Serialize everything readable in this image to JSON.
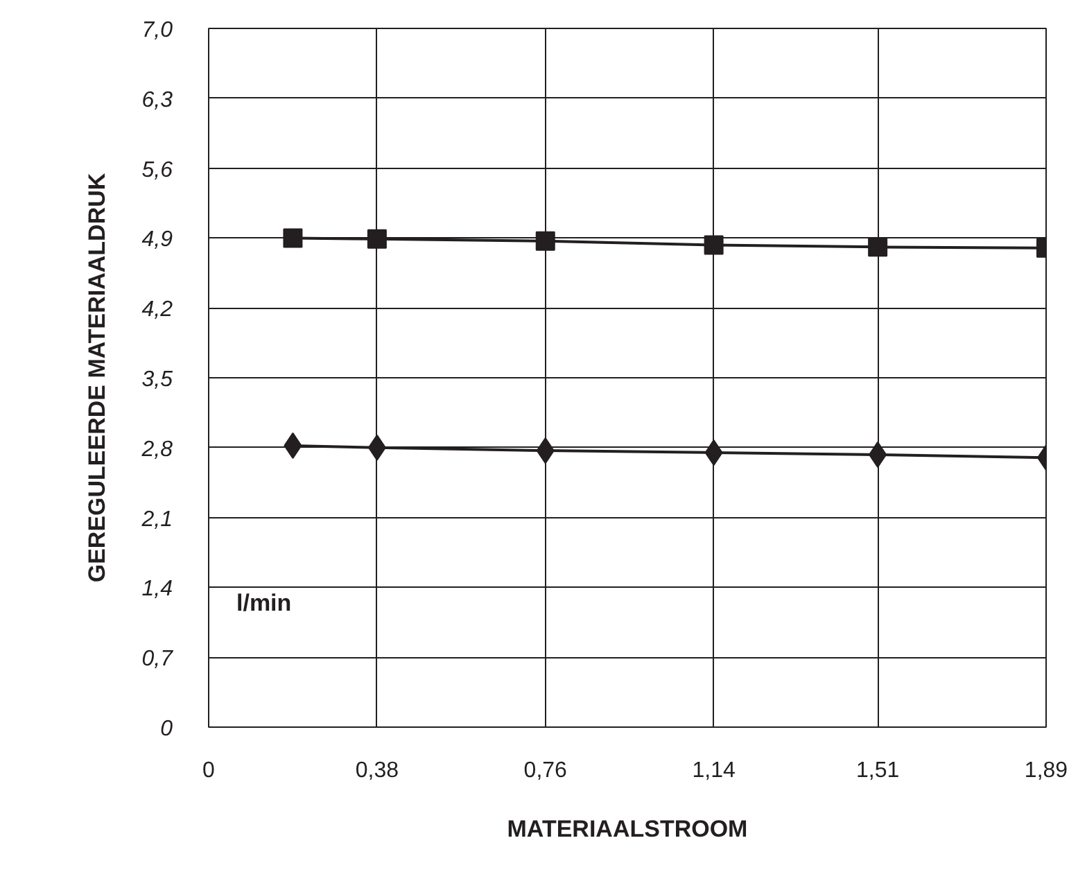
{
  "chart_data": {
    "type": "line",
    "xlabel": "MATERIAALSTROOM",
    "ylabel": "GEREGULEERDE MATERIAALDRUK",
    "annotations": [
      "l/min"
    ],
    "x": [
      0.19,
      0.38,
      0.76,
      1.14,
      1.51,
      1.89
    ],
    "series": [
      {
        "color": "#231f20",
        "marker": "square",
        "values": [
          4.9,
          4.89,
          4.87,
          4.83,
          4.81,
          4.8
        ]
      },
      {
        "color": "#231f20",
        "marker": "diamond",
        "values": [
          2.82,
          2.8,
          2.77,
          2.75,
          2.73,
          2.7
        ]
      }
    ],
    "xlim": [
      0,
      1.89
    ],
    "ylim": [
      0,
      7.0
    ],
    "xticks": [
      0,
      {
        "value": 0.38,
        "label": "0,38"
      },
      {
        "value": 0.76,
        "label": "0,76"
      },
      {
        "value": 1.14,
        "label": "1,14"
      },
      {
        "value": 1.51,
        "label": "1,51"
      },
      {
        "value": 1.89,
        "label": "1,89"
      }
    ],
    "yticks": [
      0,
      {
        "value": 0.7,
        "label": "0,7"
      },
      {
        "value": 1.4,
        "label": "1,4"
      },
      {
        "value": 2.1,
        "label": "2,1"
      },
      {
        "value": 2.8,
        "label": "2,8"
      },
      {
        "value": 3.5,
        "label": "3,5"
      },
      {
        "value": 4.2,
        "label": "4,2"
      },
      {
        "value": 4.9,
        "label": "4,9"
      },
      {
        "value": 5.6,
        "label": "5,6"
      },
      {
        "value": 6.3,
        "label": "6,3"
      },
      {
        "value": 7.0,
        "label": "7,0"
      }
    ],
    "grid": true,
    "line_style": "solid"
  }
}
